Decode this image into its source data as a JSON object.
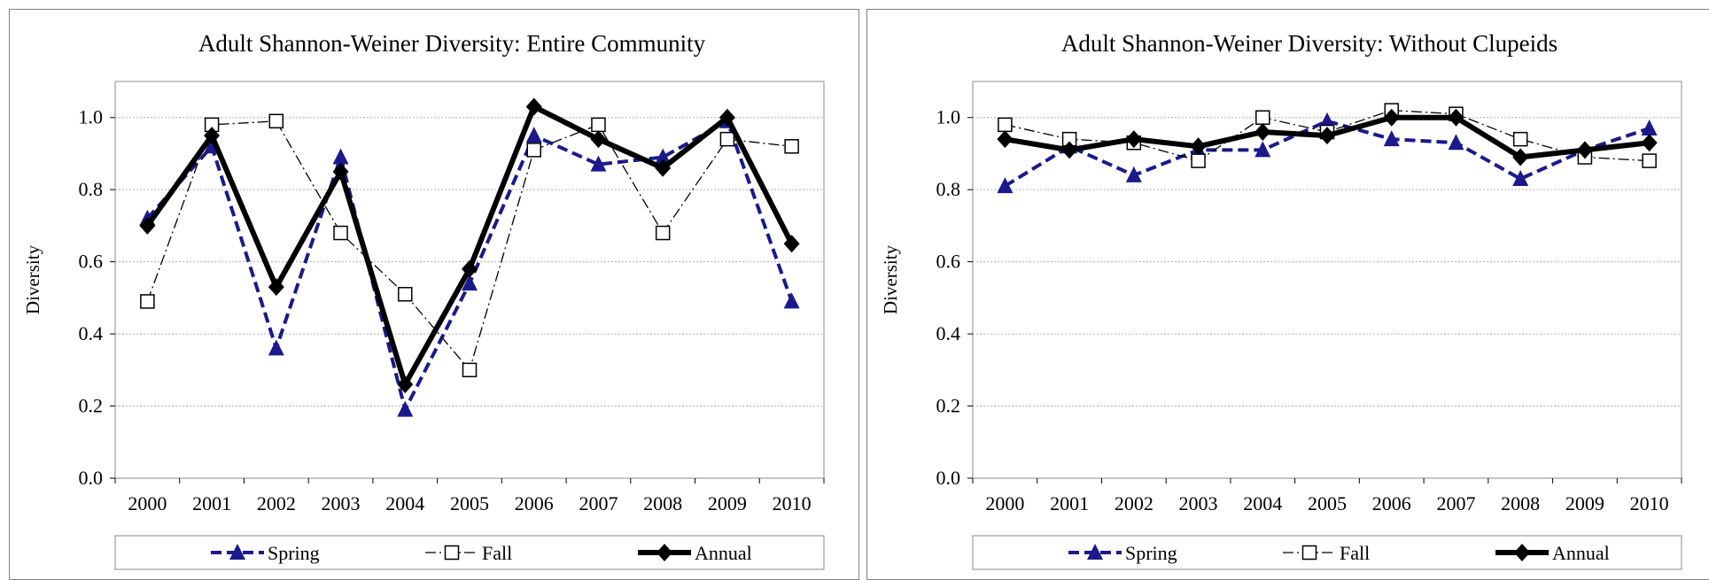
{
  "colors": {
    "spring": "#1a1a8c",
    "fall": "#000000",
    "annual": "#000000",
    "grid": "#b0b0b0",
    "frame": "#808080"
  },
  "chart_data": [
    {
      "type": "line",
      "title": "Adult Shannon-Weiner Diversity: Entire Community",
      "xlabel": "",
      "ylabel": "Diversity",
      "ylim": [
        0.0,
        1.1
      ],
      "yticks": [
        "0.0",
        "0.2",
        "0.4",
        "0.6",
        "0.8",
        "1.0"
      ],
      "grid": true,
      "legend_position": "bottom",
      "categories": [
        "2000",
        "2001",
        "2002",
        "2003",
        "2004",
        "2005",
        "2006",
        "2007",
        "2008",
        "2009",
        "2010"
      ],
      "series": [
        {
          "name": "Spring",
          "values": [
            0.72,
            0.92,
            0.36,
            0.89,
            0.19,
            0.54,
            0.95,
            0.87,
            0.89,
            0.99,
            0.49
          ]
        },
        {
          "name": "Fall",
          "values": [
            0.49,
            0.98,
            0.99,
            0.68,
            0.51,
            0.3,
            0.91,
            0.98,
            0.68,
            0.94,
            0.92
          ]
        },
        {
          "name": "Annual",
          "values": [
            0.7,
            0.95,
            0.53,
            0.85,
            0.26,
            0.58,
            1.03,
            0.94,
            0.86,
            1.0,
            0.65
          ]
        }
      ]
    },
    {
      "type": "line",
      "title": "Adult Shannon-Weiner Diversity: Without Clupeids",
      "xlabel": "",
      "ylabel": "Diversity",
      "ylim": [
        0.0,
        1.1
      ],
      "yticks": [
        "0.0",
        "0.2",
        "0.4",
        "0.6",
        "0.8",
        "1.0"
      ],
      "grid": true,
      "legend_position": "bottom",
      "categories": [
        "2000",
        "2001",
        "2002",
        "2003",
        "2004",
        "2005",
        "2006",
        "2007",
        "2008",
        "2009",
        "2010"
      ],
      "series": [
        {
          "name": "Spring",
          "values": [
            0.81,
            0.92,
            0.84,
            0.91,
            0.91,
            0.99,
            0.94,
            0.93,
            0.83,
            0.91,
            0.97
          ]
        },
        {
          "name": "Fall",
          "values": [
            0.98,
            0.94,
            0.93,
            0.88,
            1.0,
            0.96,
            1.02,
            1.01,
            0.94,
            0.89,
            0.88
          ]
        },
        {
          "name": "Annual",
          "values": [
            0.94,
            0.91,
            0.94,
            0.92,
            0.96,
            0.95,
            1.0,
            1.0,
            0.89,
            0.91,
            0.93
          ]
        }
      ]
    }
  ]
}
